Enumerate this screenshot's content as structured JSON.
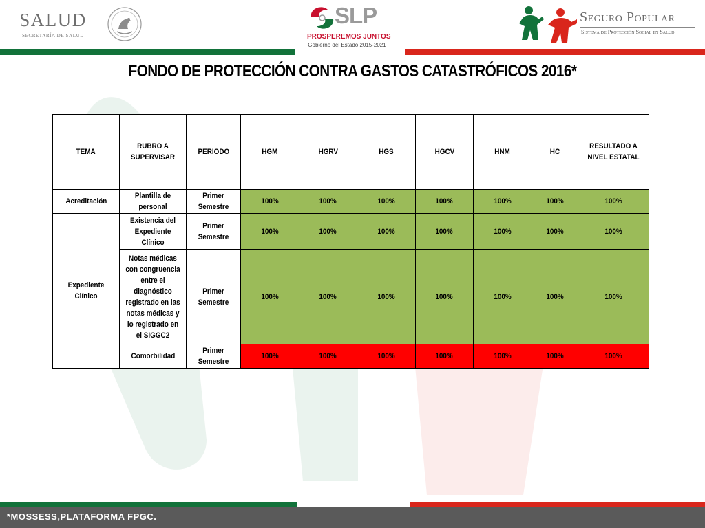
{
  "header": {
    "salud_logo": {
      "name": "SALUD",
      "subtitle": "SECRETARÍA DE SALUD"
    },
    "seal_icon": "mexican-coat-of-arms-seal",
    "slp_logo": {
      "name": "SLP",
      "tagline": "PROSPEREMOS JUNTOS",
      "government": "Gobierno del Estado 2015-2021"
    },
    "seguro_popular_logo": {
      "name": "Seguro Popular",
      "subtitle": "Sistema de Protección Social en Salud"
    },
    "colors": {
      "green": "#12723a",
      "red": "#d9261c"
    }
  },
  "title": "FONDO DE PROTECCIÓN CONTRA GASTOS CATASTRÓFICOS 2016*",
  "table": {
    "headers": [
      "TEMA",
      "RUBRO A SUPERVISAR",
      "PERIODO",
      "HGM",
      "HGRV",
      "HGS",
      "HGCV",
      "HNM",
      "HC",
      "RESULTADO A NIVEL ESTATAL"
    ],
    "rows": [
      {
        "tema": "Acreditación",
        "rubro": "Plantilla de personal",
        "periodo": "Primer Semestre",
        "values": [
          "100%",
          "100%",
          "100%",
          "100%",
          "100%",
          "100%",
          "100%"
        ],
        "status": "green"
      },
      {
        "tema": "Expediente Clínico",
        "rubro": "Existencia del Expediente Clínico",
        "periodo": "Primer Semestre",
        "values": [
          "100%",
          "100%",
          "100%",
          "100%",
          "100%",
          "100%",
          "100%"
        ],
        "status": "green"
      },
      {
        "rubro": "Notas médicas con congruencia entre el diagnóstico registrado en las notas médicas y lo registrado en el SIGGC2",
        "periodo": "Primer Semestre",
        "values": [
          "100%",
          "100%",
          "100%",
          "100%",
          "100%",
          "100%",
          "100%"
        ],
        "status": "green"
      },
      {
        "rubro": "Comorbilidad",
        "periodo": "Primer Semestre",
        "values": [
          "100%",
          "100%",
          "100%",
          "100%",
          "100%",
          "100%",
          "100%"
        ],
        "status": "red"
      }
    ],
    "status_colors": {
      "green": "#9bbb59",
      "red": "#ff0000"
    }
  },
  "footer": {
    "note": "*MOSSESS,PLATAFORMA FPGC."
  }
}
